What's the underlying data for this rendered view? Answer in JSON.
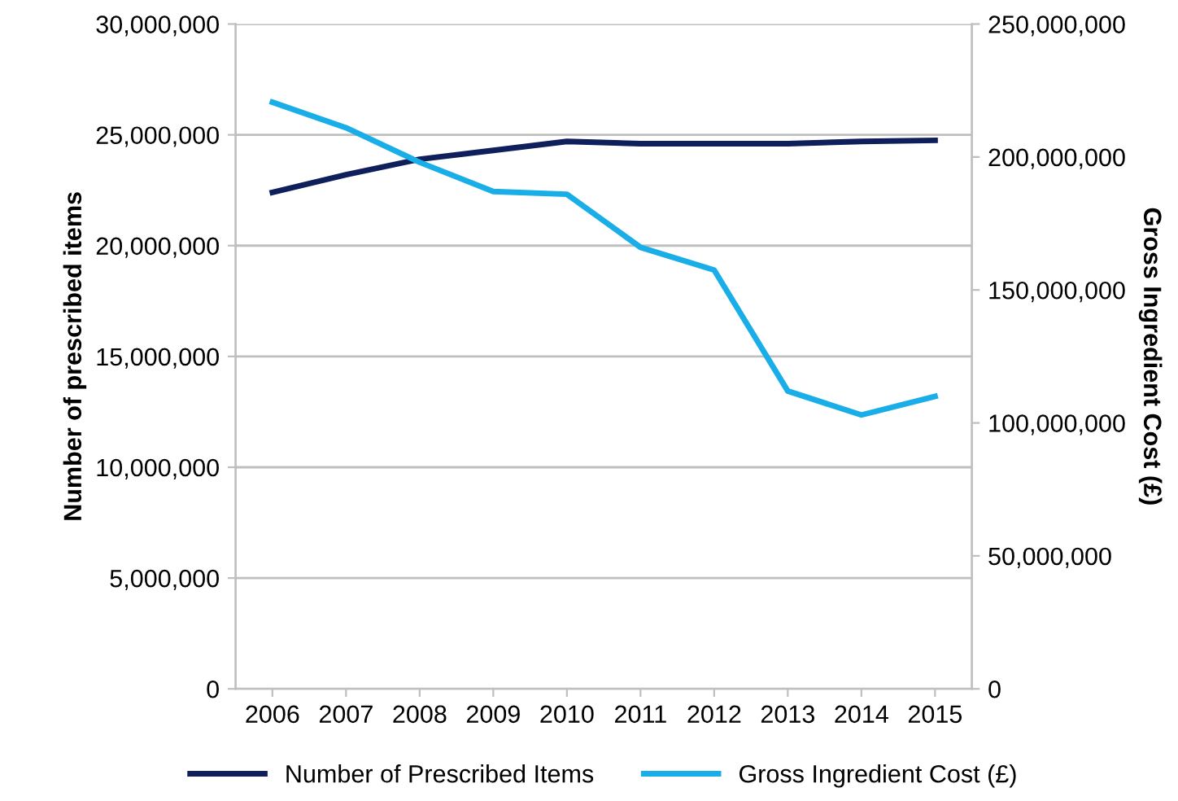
{
  "chart_data": {
    "type": "line",
    "categories": [
      "2006",
      "2007",
      "2008",
      "2009",
      "2010",
      "2011",
      "2012",
      "2013",
      "2014",
      "2015"
    ],
    "ylabel": "Number of prescribed items",
    "y2label": "Gross Ingredient Cost (£)",
    "series": [
      {
        "name": "Number of Prescribed Items",
        "color": "#0f1f5c",
        "values": [
          22400000,
          23200000,
          23900000,
          24300000,
          24700000,
          24600000,
          24600000,
          24600000,
          24700000,
          24750000
        ]
      },
      {
        "name": "Gross Ingredient Cost (£)",
        "color": "#1aaee8",
        "axis": "y2",
        "values": [
          220600000,
          211000000,
          198000000,
          187000000,
          186000000,
          166000000,
          157500000,
          112000000,
          103000000,
          110000000
        ]
      }
    ],
    "ylim": [
      0,
      30000000
    ],
    "yticks": [
      {
        "value": 0,
        "label": "0"
      },
      {
        "value": 5000000,
        "label": "5,000,000"
      },
      {
        "value": 10000000,
        "label": "10,000,000"
      },
      {
        "value": 15000000,
        "label": "15,000,000"
      },
      {
        "value": 20000000,
        "label": "20,000,000"
      },
      {
        "value": 25000000,
        "label": "25,000,000"
      },
      {
        "value": 30000000,
        "label": "30,000,000"
      }
    ],
    "y2lim": [
      0,
      250000000
    ],
    "y2ticks": [
      {
        "value": 0,
        "label": "0"
      },
      {
        "value": 50000000,
        "label": "50,000,000"
      },
      {
        "value": 100000000,
        "label": "100,000,000"
      },
      {
        "value": 150000000,
        "label": "150,000,000"
      },
      {
        "value": 200000000,
        "label": "200,000,000"
      },
      {
        "value": 250000000,
        "label": "250,000,000"
      }
    ],
    "grid": "y",
    "legend": "bottom",
    "marker": "none",
    "line_style": "solid"
  }
}
